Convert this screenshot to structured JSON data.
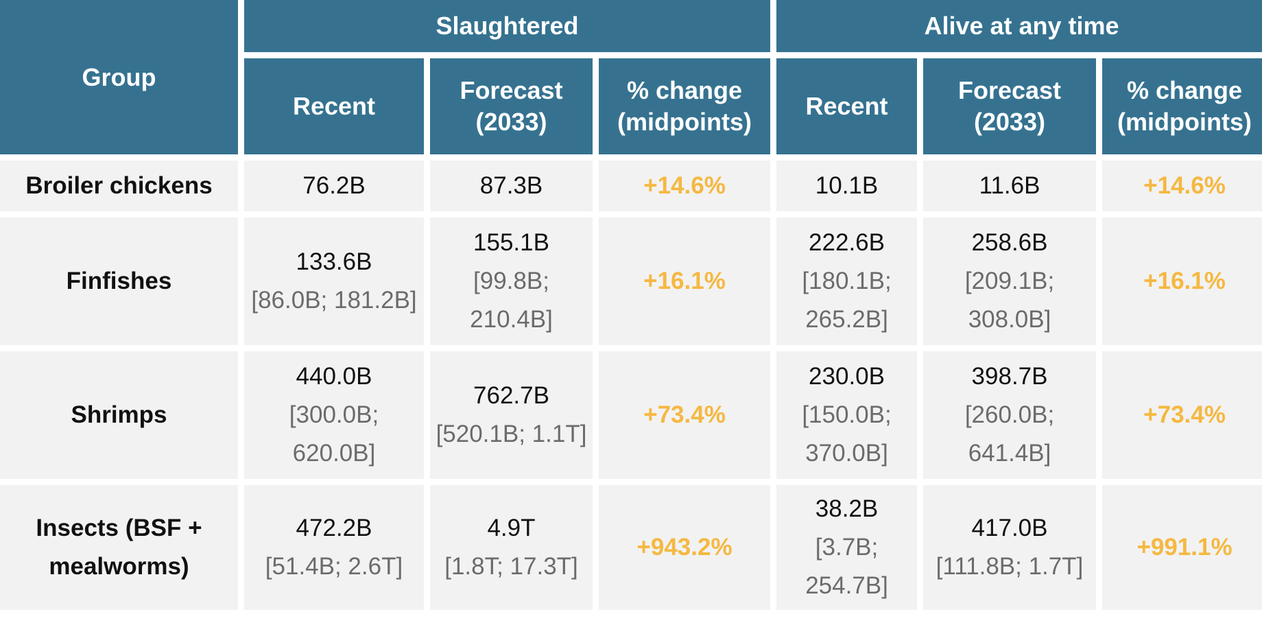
{
  "table": {
    "header": {
      "group": "Group",
      "slaughtered": "Slaughtered",
      "alive": "Alive at any time",
      "recent": "Recent",
      "forecast": "Forecast (2033)",
      "pct_change": "% change (midpoints)"
    },
    "colors": {
      "header_bg": "#367290",
      "cell_bg": "#f2f2f2",
      "pct_text": "#f5b841",
      "range_text": "#6b6b6b"
    },
    "rows": [
      {
        "group": "Broiler chickens",
        "slaughtered": {
          "recent": {
            "mid": "76.2B",
            "range": ""
          },
          "forecast": {
            "mid": "87.3B",
            "range": ""
          },
          "pct": "+14.6%"
        },
        "alive": {
          "recent": {
            "mid": "10.1B",
            "range": ""
          },
          "forecast": {
            "mid": "11.6B",
            "range": ""
          },
          "pct": "+14.6%"
        }
      },
      {
        "group": "Finfishes",
        "slaughtered": {
          "recent": {
            "mid": "133.6B",
            "range": "[86.0B; 181.2B]"
          },
          "forecast": {
            "mid": "155.1B",
            "range": "[99.8B; 210.4B]"
          },
          "pct": "+16.1%"
        },
        "alive": {
          "recent": {
            "mid": "222.6B",
            "range": "[180.1B; 265.2B]"
          },
          "forecast": {
            "mid": "258.6B",
            "range": "[209.1B; 308.0B]"
          },
          "pct": "+16.1%"
        }
      },
      {
        "group": "Shrimps",
        "slaughtered": {
          "recent": {
            "mid": "440.0B",
            "range": "[300.0B; 620.0B]"
          },
          "forecast": {
            "mid": "762.7B",
            "range": "[520.1B; 1.1T]"
          },
          "pct": "+73.4%"
        },
        "alive": {
          "recent": {
            "mid": "230.0B",
            "range": "[150.0B; 370.0B]"
          },
          "forecast": {
            "mid": "398.7B",
            "range": "[260.0B; 641.4B]"
          },
          "pct": "+73.4%"
        }
      },
      {
        "group": "Insects (BSF + mealworms)",
        "slaughtered": {
          "recent": {
            "mid": "472.2B",
            "range": "[51.4B; 2.6T]"
          },
          "forecast": {
            "mid": "4.9T",
            "range": "[1.8T; 17.3T]"
          },
          "pct": "+943.2%"
        },
        "alive": {
          "recent": {
            "mid": "38.2B",
            "range": "[3.7B; 254.7B]"
          },
          "forecast": {
            "mid": "417.0B",
            "range": "[111.8B; 1.7T]"
          },
          "pct": "+991.1%"
        }
      }
    ]
  }
}
